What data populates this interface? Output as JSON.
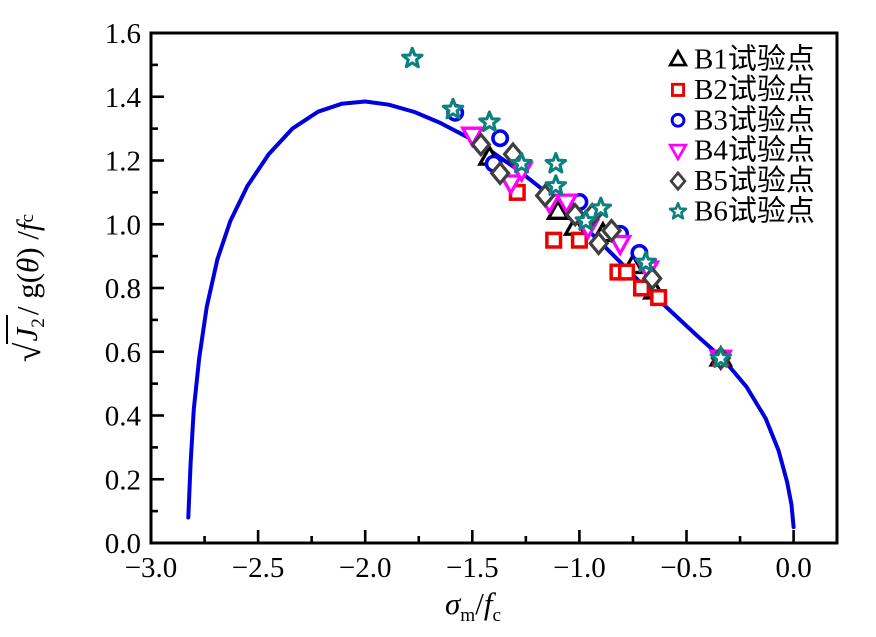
{
  "figure": {
    "x_axis": {
      "label": {
        "sigma": "σ",
        "sigma_sub": "m",
        "slash": "/",
        "f": "f",
        "f_sub": "c"
      },
      "tick_labels": [
        "−3.0",
        "−2.5",
        "−2.0",
        "−1.5",
        "−1.0",
        "−0.5",
        "0.0"
      ]
    },
    "y_axis": {
      "label": {
        "radical": "√",
        "j": "J",
        "j_sub": "2",
        "mid": " / g(",
        "theta": "θ",
        "mid2": ") / ",
        "f": "f",
        "f_sub": "c"
      },
      "tick_labels": [
        "0.0",
        "0.2",
        "0.4",
        "0.6",
        "0.8",
        "1.0",
        "1.2",
        "1.4",
        "1.6"
      ]
    }
  },
  "chart_data": {
    "type": "scatter",
    "title": "",
    "xlabel": "σm/fc",
    "ylabel": "√J2 / g(θ) / fc",
    "xlim": [
      -3.0,
      0.2
    ],
    "ylim": [
      0.0,
      1.6
    ],
    "grid": false,
    "legend_position": "top-right",
    "axis_color": "#000000",
    "x_major_ticks": [
      -3.0,
      -2.5,
      -2.0,
      -1.5,
      -1.0,
      -0.5,
      0.0
    ],
    "x_minor_ticks": [
      -2.75,
      -2.25,
      -1.75,
      -1.25,
      -0.75,
      -0.25
    ],
    "y_major_ticks": [
      0.0,
      0.2,
      0.4,
      0.6,
      0.8,
      1.0,
      1.2,
      1.4,
      1.6
    ],
    "y_minor_ticks": [
      0.1,
      0.3,
      0.5,
      0.7,
      0.9,
      1.1,
      1.3,
      1.5
    ],
    "curve": {
      "name": "failure-criterion-curve",
      "color": "#0000dd",
      "points": [
        [
          -2.826,
          0.08
        ],
        [
          -2.815,
          0.25
        ],
        [
          -2.8,
          0.42
        ],
        [
          -2.775,
          0.58
        ],
        [
          -2.74,
          0.74
        ],
        [
          -2.69,
          0.89
        ],
        [
          -2.63,
          1.01
        ],
        [
          -2.55,
          1.12
        ],
        [
          -2.45,
          1.22
        ],
        [
          -2.34,
          1.3
        ],
        [
          -2.22,
          1.353
        ],
        [
          -2.11,
          1.378
        ],
        [
          -2.0,
          1.385
        ],
        [
          -1.89,
          1.375
        ],
        [
          -1.77,
          1.352
        ],
        [
          -1.65,
          1.318
        ],
        [
          -1.53,
          1.276
        ],
        [
          -1.41,
          1.228
        ],
        [
          -1.29,
          1.172
        ],
        [
          -1.17,
          1.108
        ],
        [
          -1.05,
          1.04
        ],
        [
          -0.93,
          0.962
        ],
        [
          -0.81,
          0.882
        ],
        [
          -0.69,
          0.8
        ],
        [
          -0.57,
          0.725
        ],
        [
          -0.45,
          0.65
        ],
        [
          -0.33,
          0.578
        ],
        [
          -0.22,
          0.49
        ],
        [
          -0.13,
          0.39
        ],
        [
          -0.07,
          0.29
        ],
        [
          -0.03,
          0.19
        ],
        [
          -0.01,
          0.12
        ],
        [
          0.0,
          0.05
        ]
      ]
    },
    "series": [
      {
        "name": "B1试验点",
        "marker": "triangle-up",
        "color": "#000000",
        "points": [
          [
            -1.42,
            1.21
          ],
          [
            -1.1,
            1.04
          ],
          [
            -1.02,
            0.99
          ],
          [
            -0.89,
            0.97
          ],
          [
            -0.75,
            0.87
          ],
          [
            -0.65,
            0.79
          ],
          [
            -0.34,
            0.58
          ]
        ]
      },
      {
        "name": "B2试验点",
        "marker": "square",
        "color": "#ee0000",
        "points": [
          [
            -1.29,
            1.1
          ],
          [
            -1.12,
            0.95
          ],
          [
            -1.0,
            0.95
          ],
          [
            -0.82,
            0.85
          ],
          [
            -0.78,
            0.85
          ],
          [
            -0.71,
            0.8
          ],
          [
            -0.63,
            0.77
          ],
          [
            -0.34,
            0.58
          ]
        ]
      },
      {
        "name": "B3试验点",
        "marker": "circle",
        "color": "#0000ee",
        "points": [
          [
            -1.58,
            1.35
          ],
          [
            -1.4,
            1.19
          ],
          [
            -1.37,
            1.27
          ],
          [
            -1.0,
            1.07
          ],
          [
            -0.81,
            0.97
          ],
          [
            -0.72,
            0.91
          ],
          [
            -0.34,
            0.58
          ]
        ]
      },
      {
        "name": "B4试验点",
        "marker": "triangle-down",
        "color": "#ff00ff",
        "points": [
          [
            -1.5,
            1.28
          ],
          [
            -1.32,
            1.13
          ],
          [
            -1.27,
            1.17
          ],
          [
            -1.14,
            1.07
          ],
          [
            -1.06,
            1.07
          ],
          [
            -0.96,
            0.99
          ],
          [
            -0.81,
            0.94
          ],
          [
            -0.68,
            0.86
          ],
          [
            -0.34,
            0.58
          ]
        ]
      },
      {
        "name": "B5试验点",
        "marker": "diamond",
        "color": "#3f3f3f",
        "points": [
          [
            -1.46,
            1.25
          ],
          [
            -1.37,
            1.16
          ],
          [
            -1.31,
            1.22
          ],
          [
            -1.16,
            1.09
          ],
          [
            -1.02,
            1.03
          ],
          [
            -0.94,
            1.03
          ],
          [
            -0.91,
            0.94
          ],
          [
            -0.85,
            0.98
          ],
          [
            -0.66,
            0.83
          ],
          [
            -0.34,
            0.58
          ]
        ]
      },
      {
        "name": "B6试验点",
        "marker": "star",
        "color": "#0d8080",
        "points": [
          [
            -1.78,
            1.52
          ],
          [
            -1.59,
            1.36
          ],
          [
            -1.42,
            1.32
          ],
          [
            -1.27,
            1.19
          ],
          [
            -1.11,
            1.19
          ],
          [
            -1.11,
            1.12
          ],
          [
            -0.97,
            1.01
          ],
          [
            -0.9,
            1.05
          ],
          [
            -0.69,
            0.88
          ],
          [
            -0.34,
            0.58
          ]
        ]
      }
    ]
  }
}
